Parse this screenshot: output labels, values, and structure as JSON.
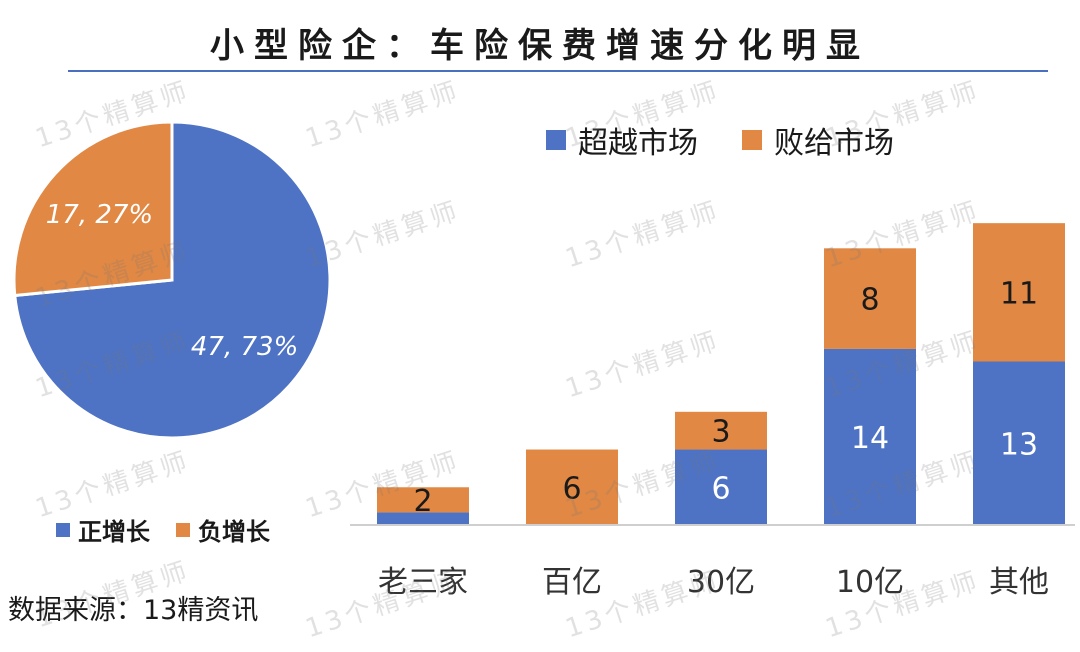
{
  "title": "小型险企：车险保费增速分化明显",
  "source": "数据来源：13精资讯",
  "watermark": "13个精算师",
  "colors": {
    "blue": "#4E72C4",
    "orange": "#E08844",
    "rule": "#4a6fc0"
  },
  "pie_legend": [
    {
      "label": "正增长",
      "color": "#4E72C4"
    },
    {
      "label": "负增长",
      "color": "#E08844"
    }
  ],
  "bar_legend": [
    {
      "label": "超越市场",
      "color": "#4E72C4"
    },
    {
      "label": "败给市场",
      "color": "#E08844"
    }
  ],
  "chart_data": [
    {
      "type": "pie",
      "slices": [
        {
          "name": "正增长",
          "value": 47,
          "percent": 73,
          "label": "47, 73%",
          "color": "#4E72C4"
        },
        {
          "name": "负增长",
          "value": 17,
          "percent": 27,
          "label": "17, 27%",
          "color": "#E08844"
        }
      ],
      "legend_position": "bottom"
    },
    {
      "type": "bar",
      "stacked": true,
      "categories": [
        "老三家",
        "百亿",
        "30亿",
        "10亿",
        "其他"
      ],
      "series": [
        {
          "name": "超越市场",
          "values": [
            1,
            0,
            6,
            14,
            13
          ],
          "labels": [
            "",
            "",
            "6",
            "14",
            "13"
          ],
          "color": "#4E72C4"
        },
        {
          "name": "败给市场",
          "values": [
            2,
            6,
            3,
            8,
            11
          ],
          "labels": [
            "2",
            "6",
            "3",
            "8",
            "11"
          ],
          "color": "#E08844"
        }
      ],
      "ylim": [
        0,
        26
      ],
      "legend_position": "top",
      "grid": false
    }
  ]
}
